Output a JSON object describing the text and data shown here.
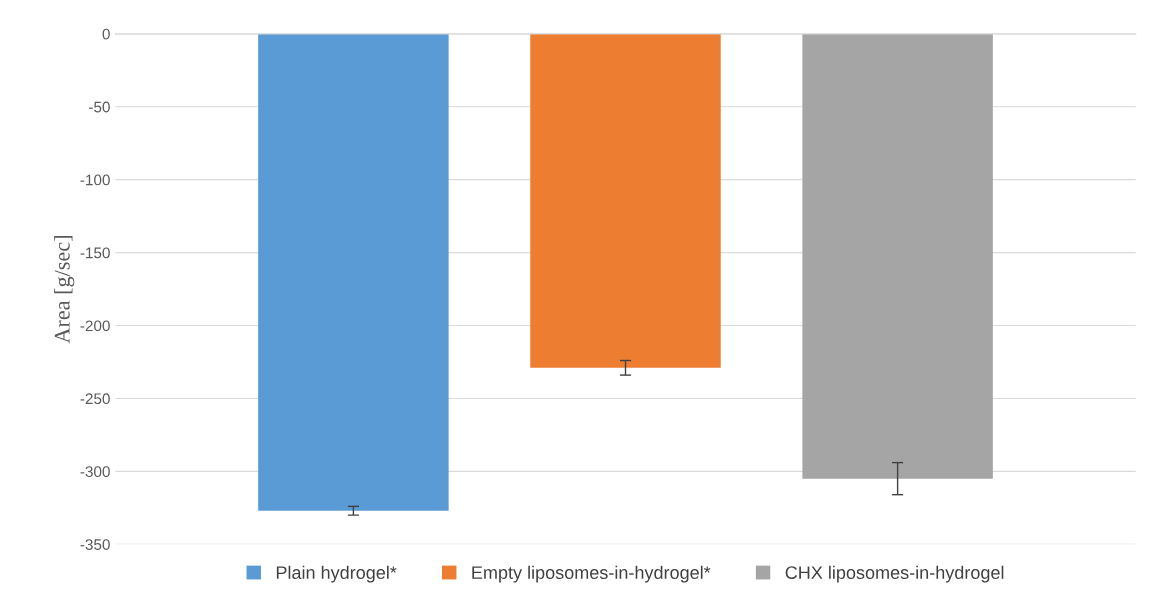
{
  "chart_data": {
    "type": "bar",
    "ylabel": "Area [g/sec]",
    "categories": [
      null
    ],
    "series": [
      {
        "name": "Plain hydrogel*",
        "color": "#5b9bd5",
        "values": [
          -327
        ],
        "errors": [
          3
        ]
      },
      {
        "name": "Empty liposomes-in-hydrogel*",
        "color": "#ed7d31",
        "values": [
          -229
        ],
        "errors": [
          5
        ]
      },
      {
        "name": "CHX liposomes-in-hydrogel",
        "color": "#a5a5a5",
        "values": [
          -305
        ],
        "errors": [
          11
        ]
      }
    ],
    "ylim": [
      -350,
      0
    ],
    "yticks": [
      -350,
      -300,
      -250,
      -200,
      -150,
      -100,
      -50,
      0
    ],
    "grid": "y",
    "legend": "bottom"
  }
}
